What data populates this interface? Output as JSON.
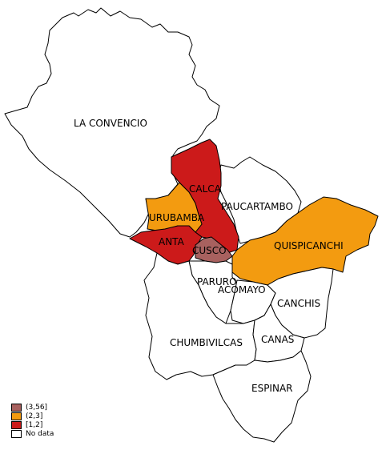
{
  "colors": {
    "class_3_56": "#a8615f",
    "class_2_3": "#f39b10",
    "class_1_2": "#cc1a1a",
    "no_data": "#ffffff"
  },
  "provinces": [
    {
      "key": "la_convencion",
      "label": "LA CONVENCIO",
      "class": "no_data"
    },
    {
      "key": "calca",
      "label": "CALCA",
      "class": "class_1_2"
    },
    {
      "key": "paucartambo",
      "label": "PAUCARTAMBO",
      "class": "no_data"
    },
    {
      "key": "urubamba",
      "label": "URUBAMBA",
      "class": "class_2_3"
    },
    {
      "key": "anta",
      "label": "ANTA",
      "class": "class_1_2"
    },
    {
      "key": "cusco",
      "label": "CUSCO",
      "class": "class_3_56"
    },
    {
      "key": "quispicanchi",
      "label": "QUISPICANCHI",
      "class": "class_2_3"
    },
    {
      "key": "paruro",
      "label": "PARURO",
      "class": "no_data"
    },
    {
      "key": "acomayo",
      "label": "ACOMAYO",
      "class": "no_data"
    },
    {
      "key": "canchis",
      "label": "CANCHIS",
      "class": "no_data"
    },
    {
      "key": "chumbivilcas",
      "label": "CHUMBIVILCAS",
      "class": "no_data"
    },
    {
      "key": "canas",
      "label": "CANAS",
      "class": "no_data"
    },
    {
      "key": "espinar",
      "label": "ESPINAR",
      "class": "no_data"
    }
  ],
  "legend": [
    {
      "label": "(3,56]",
      "class": "class_3_56"
    },
    {
      "label": "(2,3]",
      "class": "class_2_3"
    },
    {
      "label": "[1,2]",
      "class": "class_1_2"
    },
    {
      "label": "No data",
      "class": "no_data"
    }
  ]
}
